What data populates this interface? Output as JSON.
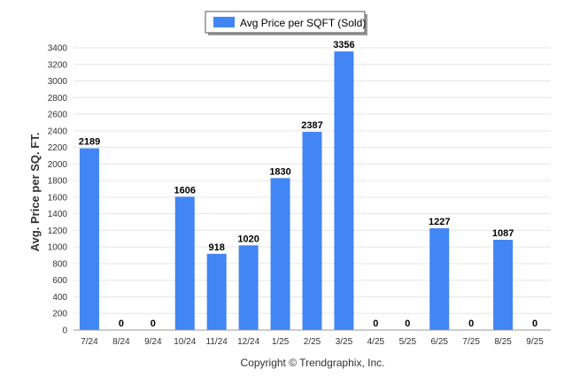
{
  "chart_data": {
    "type": "bar",
    "title": "",
    "xlabel": "",
    "ylabel": "Avg. Price per SQ. FT.",
    "ylim": [
      0,
      3400
    ],
    "ytick_step": 200,
    "grid": true,
    "legend_placement": "top-center",
    "categories": [
      "7/24",
      "8/24",
      "9/24",
      "10/24",
      "11/24",
      "12/24",
      "1/25",
      "2/25",
      "3/25",
      "4/25",
      "5/25",
      "6/25",
      "7/25",
      "8/25",
      "9/25"
    ],
    "series": [
      {
        "name": "Avg Price per SQFT (Sold)",
        "color": "#4285f4",
        "values": [
          2189,
          0,
          0,
          1606,
          918,
          1020,
          1830,
          2387,
          3356,
          0,
          0,
          1227,
          0,
          1087,
          0
        ]
      }
    ]
  },
  "footer": {
    "copyright": "Copyright © Trendgraphix, Inc."
  }
}
